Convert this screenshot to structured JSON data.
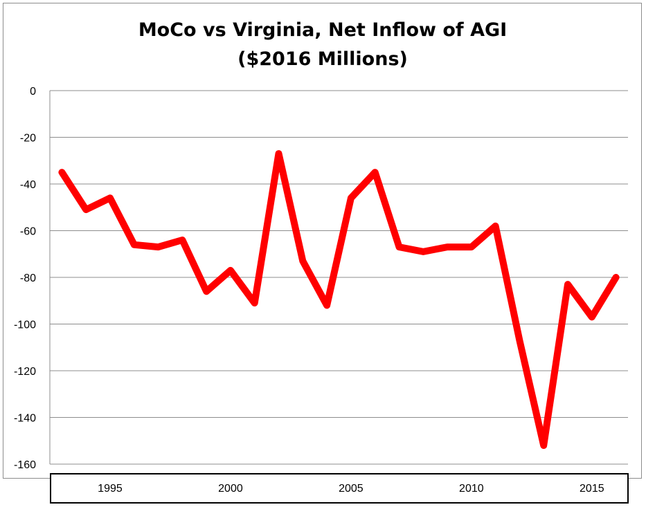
{
  "chart_data": {
    "type": "line",
    "title_lines": [
      "MoCo vs Virginia, Net Inflow of AGI",
      "($2016 Millions)"
    ],
    "xlabel": "",
    "ylabel": "",
    "ylim": [
      -160,
      0
    ],
    "yticks": [
      0,
      -20,
      -40,
      -60,
      -80,
      -100,
      -120,
      -140,
      -160
    ],
    "xlim": [
      1992.5,
      2016.5
    ],
    "xticks": [
      1995,
      2000,
      2005,
      2010,
      2015
    ],
    "grid": true,
    "legend": "none",
    "colors": {
      "series": "#ff0000",
      "grid": "#8c8c8c",
      "axis_box": "#000000"
    },
    "series": [
      {
        "x": [
          1993,
          1994,
          1995,
          1996,
          1997,
          1998,
          1999,
          2000,
          2001,
          2002,
          2003,
          2004,
          2005,
          2006,
          2007,
          2008,
          2009,
          2010,
          2011,
          2012,
          2013,
          2014,
          2015,
          2016
        ],
        "values": [
          -35,
          -51,
          -46,
          -66,
          -67,
          -64,
          -86,
          -77,
          -91,
          -27,
          -73,
          -92,
          -46,
          -35,
          -67,
          -69,
          -67,
          -67,
          -58,
          -107,
          -152,
          -83,
          -97,
          -80
        ]
      }
    ]
  }
}
